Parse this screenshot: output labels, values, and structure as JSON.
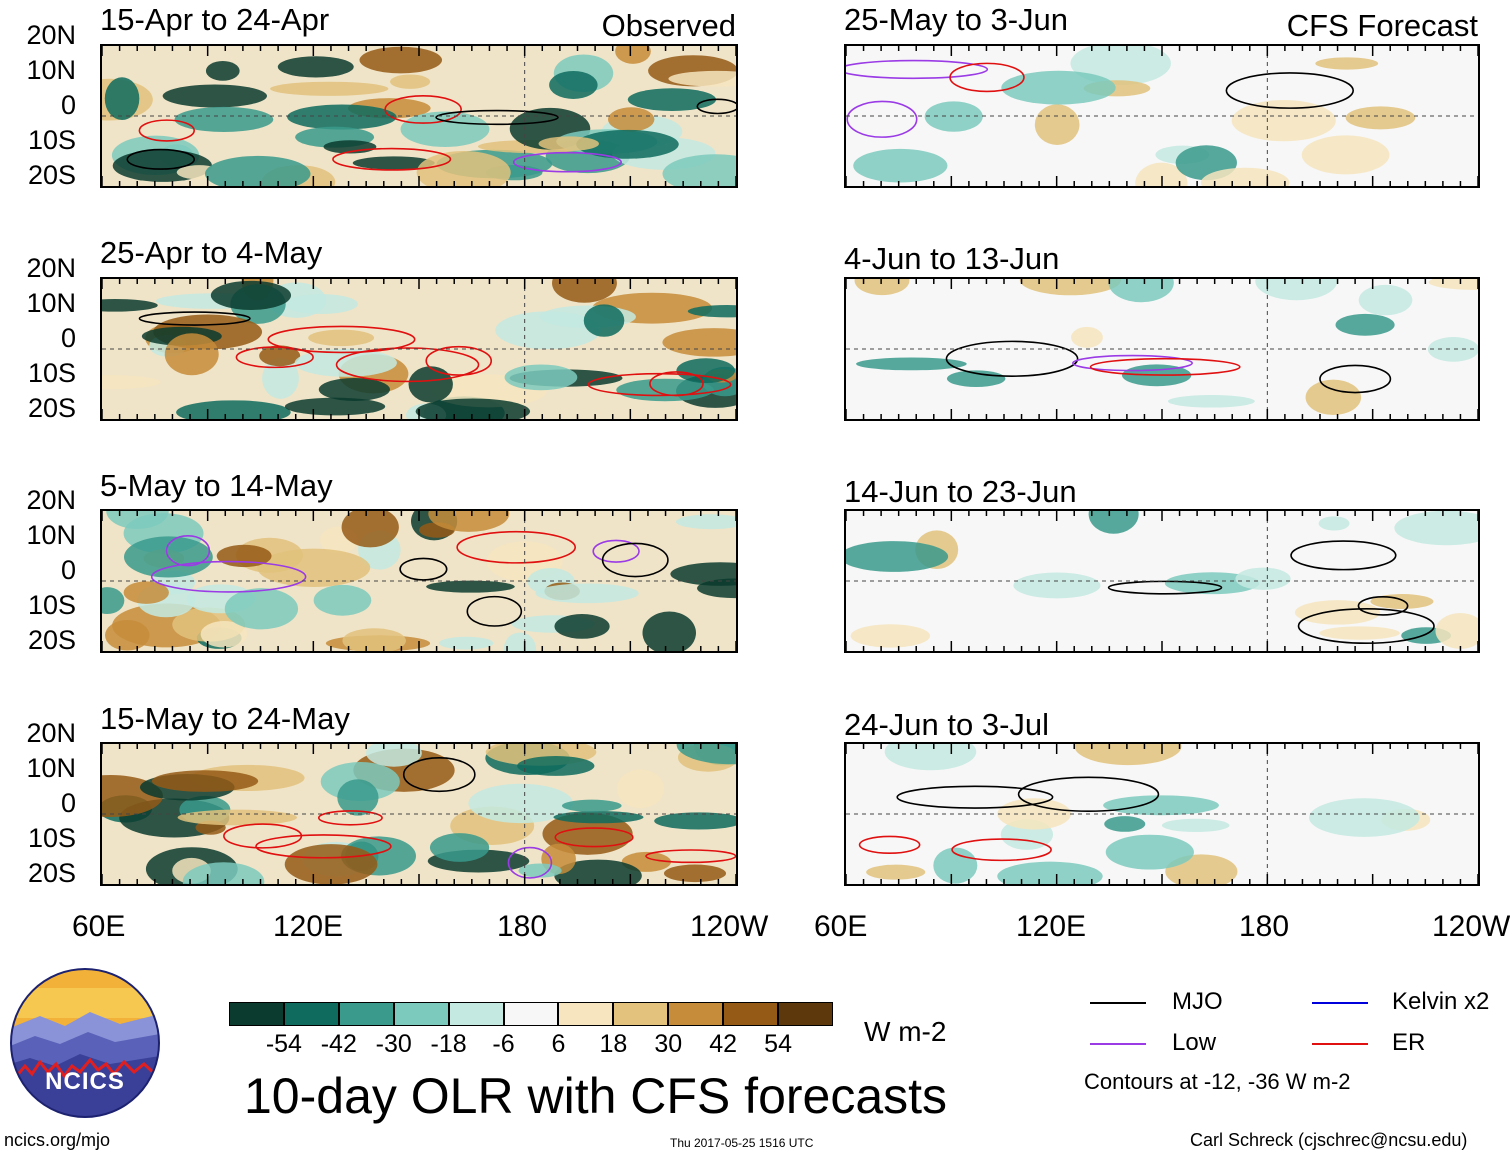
{
  "header": {
    "left_title": "Observed",
    "right_title": "CFS Forecast"
  },
  "panels": {
    "observed": [
      {
        "period": "15-Apr to 24-Apr"
      },
      {
        "period": "25-Apr to 4-May"
      },
      {
        "period": "5-May to 14-May"
      },
      {
        "period": "15-May to 24-May"
      }
    ],
    "forecast": [
      {
        "period": "25-May to 3-Jun"
      },
      {
        "period": "4-Jun to 13-Jun"
      },
      {
        "period": "14-Jun to 23-Jun"
      },
      {
        "period": "24-Jun to 3-Jul"
      }
    ]
  },
  "chart_data": {
    "type": "heatmap",
    "title": "10-day OLR with CFS forecasts",
    "lat_ticks": [
      "20N",
      "10N",
      "0",
      "10S",
      "20S"
    ],
    "lon_ticks": [
      "60E",
      "120E",
      "180",
      "120W"
    ],
    "lat_range": [
      -20,
      20
    ],
    "lon_range": [
      60,
      240
    ],
    "colorbar": {
      "units": "W m-2",
      "labels": [
        "-54",
        "-42",
        "-30",
        "-18",
        "-6",
        "6",
        "18",
        "30",
        "42",
        "54"
      ],
      "colors": [
        "#0b3b2e",
        "#0e6b5e",
        "#3a9a8c",
        "#7ccabd",
        "#c3e9e1",
        "#f7f7f7",
        "#f6e5be",
        "#e2c27d",
        "#c68c3a",
        "#955a16",
        "#5c380c"
      ]
    },
    "contours": {
      "levels_text": "Contours at -12, -36 W m-2",
      "series": [
        {
          "name": "MJO",
          "color": "#000000"
        },
        {
          "name": "Kelvin x2",
          "color": "#0000dd"
        },
        {
          "name": "Low",
          "color": "#9a3be6"
        },
        {
          "name": "ER",
          "color": "#e01010"
        }
      ]
    }
  },
  "logo": {
    "text": "NCICS"
  },
  "footer": {
    "url": "ncics.org/mjo",
    "timestamp": "Thu 2017-05-25 1516 UTC",
    "author": "Carl Schreck (cjschrec@ncsu.edu)"
  }
}
